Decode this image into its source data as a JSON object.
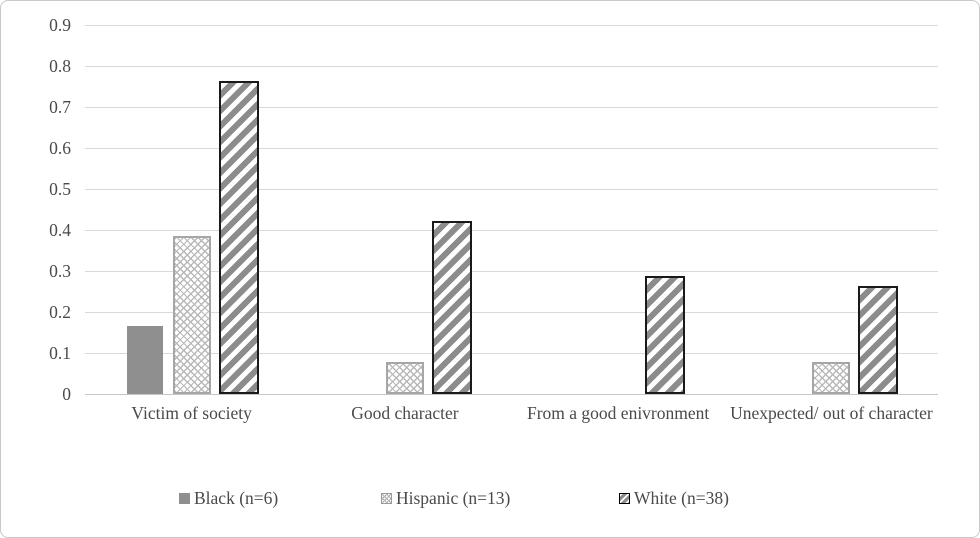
{
  "chart_data": {
    "type": "bar",
    "title": "",
    "xlabel": "",
    "ylabel": "",
    "categories": [
      "Victim of society",
      "Good character",
      "From a good enivronment",
      "Unexpected/ out of character"
    ],
    "series": [
      {
        "name": "Black (n=6)",
        "style": "solid-gray",
        "values": [
          0.167,
          0,
          0,
          0
        ]
      },
      {
        "name": "Hispanic (n=13)",
        "style": "diamond-hatch",
        "values": [
          0.385,
          0.077,
          0,
          0.077
        ]
      },
      {
        "name": "White (n=38)",
        "style": "diagonal-stripe",
        "values": [
          0.763,
          0.421,
          0.289,
          0.263
        ]
      }
    ],
    "ylim": [
      0,
      0.9
    ],
    "yticks": [
      0,
      0.1,
      0.2,
      0.3,
      0.4,
      0.5,
      0.6,
      0.7,
      0.8,
      0.9
    ],
    "ytick_labels": [
      "0",
      "0.1",
      "0.2",
      "0.3",
      "0.4",
      "0.5",
      "0.6",
      "0.7",
      "0.8",
      "0.9"
    ],
    "grid": true,
    "legend_position": "bottom"
  },
  "colors": {
    "solid_bar": "#8f8f8f",
    "hatch_line": "#b8b8b8",
    "hatch_border": "#a6a6a6",
    "stripe": "#8c8c8c",
    "stripe_border": "#1a1a1a",
    "gridline": "#d9d9d9",
    "axis_line": "#c6c6c6",
    "text": "#4a4a4a",
    "frame_border": "#c9c9c9"
  }
}
